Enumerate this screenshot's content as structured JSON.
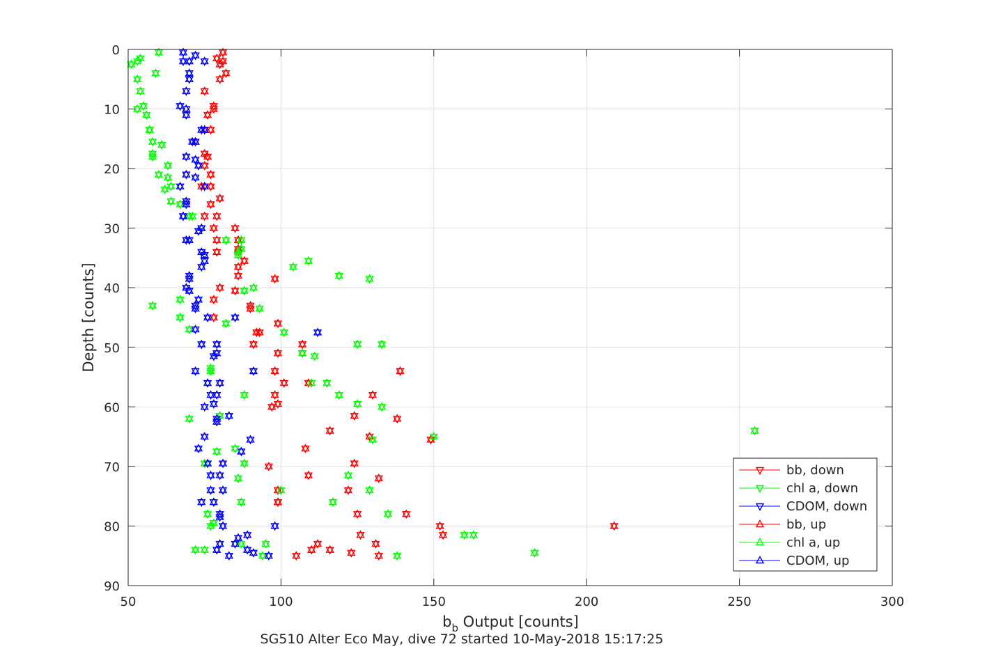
{
  "chart_data": {
    "type": "scatter",
    "title": "",
    "xlabel": "b_b Output [counts]",
    "xlabel_main": "b",
    "xlabel_sub": "b",
    "xlabel_rest": " Output [counts]",
    "ylabel": "Depth [counts]",
    "caption": "SG510 Alter Eco May, dive 72 started 10-May-2018 15:17:25",
    "xlim": [
      50,
      300
    ],
    "ylim": [
      0,
      90
    ],
    "y_reversed": true,
    "xticks": [
      50,
      100,
      150,
      200,
      250,
      300
    ],
    "yticks": [
      0,
      10,
      20,
      30,
      40,
      50,
      60,
      70,
      80,
      90
    ],
    "grid": true,
    "legend_position": "bottom-right",
    "series": [
      {
        "name": "bb, down",
        "color": "#ff0000",
        "marker": "triangle-down",
        "points": [
          [
            81,
            0.5
          ],
          [
            79,
            1.5
          ],
          [
            81,
            2
          ],
          [
            80,
            2.5
          ],
          [
            82,
            4
          ],
          [
            80,
            5
          ],
          [
            75,
            7
          ],
          [
            78,
            9.5
          ],
          [
            78,
            10
          ],
          [
            76,
            11
          ],
          [
            75,
            13.5
          ],
          [
            77,
            13.5
          ],
          [
            72,
            15.5
          ],
          [
            75,
            17.5
          ],
          [
            76,
            18
          ],
          [
            75,
            19.5
          ],
          [
            77,
            21
          ],
          [
            74,
            23
          ],
          [
            77,
            23
          ],
          [
            80,
            25
          ],
          [
            77,
            26
          ],
          [
            75,
            28
          ],
          [
            79,
            28
          ],
          [
            78,
            30
          ],
          [
            85,
            30
          ],
          [
            86,
            32
          ],
          [
            79,
            32
          ],
          [
            86,
            33.5
          ],
          [
            79,
            34
          ],
          [
            86,
            34
          ],
          [
            88,
            35.5
          ],
          [
            86,
            36.5
          ],
          [
            86,
            38
          ],
          [
            98,
            38.5
          ],
          [
            80,
            40
          ],
          [
            85,
            40.5
          ],
          [
            78,
            42
          ],
          [
            90,
            43
          ],
          [
            90,
            43.5
          ],
          [
            78,
            45
          ],
          [
            99,
            46
          ],
          [
            93,
            47.5
          ],
          [
            92,
            47.5
          ],
          [
            107,
            49.5
          ],
          [
            91,
            49.5
          ],
          [
            99,
            51
          ],
          [
            107,
            51
          ],
          [
            139,
            54
          ],
          [
            98,
            54
          ],
          [
            109,
            56
          ],
          [
            101,
            56
          ],
          [
            98,
            58
          ],
          [
            99,
            59.5
          ],
          [
            130,
            58
          ],
          [
            97,
            60
          ],
          [
            124,
            61.5
          ],
          [
            138,
            62
          ],
          [
            116,
            64
          ],
          [
            149,
            65.5
          ],
          [
            129,
            65
          ],
          [
            108,
            67
          ],
          [
            124,
            69.5
          ],
          [
            96,
            70
          ],
          [
            109,
            71.5
          ],
          [
            132,
            72
          ],
          [
            99,
            74
          ],
          [
            122,
            74
          ],
          [
            99,
            76
          ],
          [
            99,
            76
          ],
          [
            125,
            78
          ],
          [
            141,
            78
          ],
          [
            209,
            80
          ],
          [
            152,
            80
          ],
          [
            153,
            81.5
          ],
          [
            126,
            81.5
          ],
          [
            112,
            83
          ],
          [
            131,
            83
          ],
          [
            110,
            84
          ],
          [
            116,
            84
          ],
          [
            123,
            84.5
          ],
          [
            105,
            85
          ],
          [
            132,
            85
          ]
        ]
      },
      {
        "name": "chl a, down",
        "color": "#00ff00",
        "marker": "triangle-down",
        "points": [
          [
            60,
            0.5
          ],
          [
            54,
            1.5
          ],
          [
            53,
            2
          ],
          [
            51,
            2.5
          ],
          [
            59,
            4
          ],
          [
            53,
            5
          ],
          [
            54,
            7
          ],
          [
            55,
            9.5
          ],
          [
            53,
            10
          ],
          [
            56,
            11
          ],
          [
            57,
            13.5
          ],
          [
            57,
            13.5
          ],
          [
            58,
            15.5
          ],
          [
            61,
            16
          ],
          [
            58,
            17.5
          ],
          [
            58,
            18
          ],
          [
            63,
            19.5
          ],
          [
            60,
            21
          ],
          [
            63,
            21.5
          ],
          [
            64,
            23
          ],
          [
            62,
            23.5
          ],
          [
            64,
            25.5
          ],
          [
            67,
            26
          ],
          [
            70,
            28
          ],
          [
            71,
            28
          ],
          [
            74,
            30
          ],
          [
            82,
            32
          ],
          [
            87,
            32
          ],
          [
            87,
            33.5
          ],
          [
            86,
            34
          ],
          [
            86,
            34.5
          ],
          [
            109,
            35.5
          ],
          [
            104,
            36.5
          ],
          [
            119,
            38
          ],
          [
            129,
            38.5
          ],
          [
            91,
            40
          ],
          [
            88,
            40.5
          ],
          [
            58,
            43
          ],
          [
            67,
            42
          ],
          [
            93,
            43.5
          ],
          [
            67,
            45
          ],
          [
            82,
            46
          ],
          [
            70,
            47
          ],
          [
            101,
            47.5
          ],
          [
            125,
            49.5
          ],
          [
            133,
            49.5
          ],
          [
            107,
            51
          ],
          [
            111,
            51.5
          ],
          [
            77,
            53.5
          ],
          [
            77,
            54
          ],
          [
            110,
            56
          ],
          [
            115,
            56
          ],
          [
            119,
            58
          ],
          [
            88,
            58
          ],
          [
            80,
            61.5
          ],
          [
            125,
            59.5
          ],
          [
            133,
            60
          ],
          [
            70,
            62
          ],
          [
            255,
            64
          ],
          [
            130,
            65.5
          ],
          [
            150,
            65
          ],
          [
            85,
            67
          ],
          [
            79,
            67.5
          ],
          [
            75,
            69.5
          ],
          [
            88,
            69.5
          ],
          [
            122,
            71.5
          ],
          [
            86,
            72
          ],
          [
            100,
            74
          ],
          [
            129,
            74
          ],
          [
            87,
            76
          ],
          [
            117,
            76
          ],
          [
            76,
            78
          ],
          [
            135,
            78
          ],
          [
            78,
            79.5
          ],
          [
            77,
            80
          ],
          [
            160,
            81.5
          ],
          [
            163,
            81.5
          ],
          [
            95,
            83
          ],
          [
            87,
            83
          ],
          [
            72,
            84
          ],
          [
            75,
            84
          ],
          [
            183,
            84.5
          ],
          [
            94,
            85
          ],
          [
            138,
            85
          ]
        ]
      },
      {
        "name": "CDOM, down",
        "color": "#0000ff",
        "marker": "triangle-down",
        "points": [
          [
            68,
            0.5
          ],
          [
            72,
            1
          ],
          [
            70,
            2
          ],
          [
            68,
            2
          ],
          [
            75,
            2
          ],
          [
            70,
            4
          ],
          [
            70,
            5
          ],
          [
            69,
            7
          ],
          [
            67,
            9.5
          ],
          [
            69,
            10
          ],
          [
            69,
            11
          ],
          [
            74,
            13.5
          ],
          [
            75,
            13.5
          ],
          [
            71,
            15.5
          ],
          [
            72,
            15.5
          ],
          [
            69,
            18
          ],
          [
            72,
            18.5
          ],
          [
            73,
            19.5
          ],
          [
            69,
            21
          ],
          [
            72,
            21.5
          ],
          [
            67,
            23
          ],
          [
            75,
            23
          ],
          [
            69,
            25.5
          ],
          [
            69,
            26
          ],
          [
            68,
            28
          ],
          [
            68,
            28
          ],
          [
            74,
            30
          ],
          [
            73,
            30.5
          ],
          [
            69,
            32
          ],
          [
            70,
            32
          ],
          [
            74,
            34
          ],
          [
            75,
            34.5
          ],
          [
            75,
            35.5
          ],
          [
            74,
            36.5
          ],
          [
            70,
            38
          ],
          [
            70,
            38.5
          ],
          [
            69,
            40
          ],
          [
            70,
            40.5
          ],
          [
            73,
            42
          ],
          [
            72,
            43
          ],
          [
            72,
            43.5
          ],
          [
            76,
            45
          ],
          [
            85,
            45
          ],
          [
            72,
            47
          ],
          [
            112,
            47.5
          ],
          [
            74,
            49.5
          ],
          [
            79,
            49.5
          ],
          [
            79,
            51
          ],
          [
            78,
            51.5
          ],
          [
            91,
            54
          ],
          [
            72,
            54
          ],
          [
            76,
            56
          ],
          [
            80,
            56
          ],
          [
            77,
            58
          ],
          [
            79,
            58
          ],
          [
            78,
            59.5
          ],
          [
            75,
            60
          ],
          [
            83,
            61.5
          ],
          [
            79,
            62
          ],
          [
            79,
            62.5
          ],
          [
            90,
            65.5
          ],
          [
            75,
            65
          ],
          [
            87,
            67.5
          ],
          [
            73,
            67
          ],
          [
            81,
            69.5
          ],
          [
            76,
            69.5
          ],
          [
            77,
            71.5
          ],
          [
            80,
            71.5
          ],
          [
            77,
            74
          ],
          [
            81,
            74
          ],
          [
            74,
            76
          ],
          [
            78,
            76
          ],
          [
            80,
            78
          ],
          [
            80,
            78.5
          ],
          [
            98,
            80
          ],
          [
            81,
            80
          ],
          [
            89,
            81.5
          ],
          [
            86,
            82
          ],
          [
            85,
            83
          ],
          [
            80,
            83
          ],
          [
            79,
            84
          ],
          [
            89,
            84
          ],
          [
            83,
            85
          ],
          [
            91,
            84.5
          ],
          [
            96,
            85
          ]
        ]
      },
      {
        "name": "bb, up",
        "color": "#ff0000",
        "marker": "triangle-up"
      },
      {
        "name": "chl a, up",
        "color": "#00ff00",
        "marker": "triangle-up"
      },
      {
        "name": "CDOM, up",
        "color": "#0000ff",
        "marker": "triangle-up"
      }
    ]
  }
}
